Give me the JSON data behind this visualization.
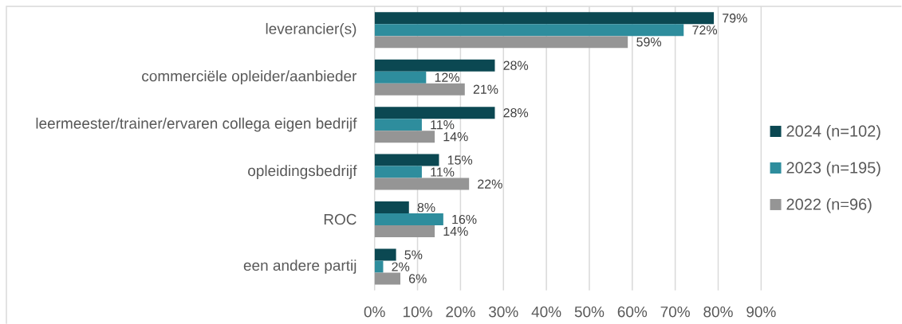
{
  "chart_data": {
    "type": "bar",
    "orientation": "horizontal",
    "categories": [
      "leverancier(s)",
      "commerciële opleider/aanbieder",
      "leermeester/trainer/ervaren collega eigen bedrijf",
      "opleidingsbedrijf",
      "ROC",
      "een andere partij"
    ],
    "series": [
      {
        "name": "2024 (n=102)",
        "color": "#0b4852",
        "values": [
          79,
          28,
          28,
          15,
          8,
          5
        ],
        "value_labels": [
          "79%",
          "28%",
          "28%",
          "15%",
          "8%",
          "5%"
        ]
      },
      {
        "name": "2023 (n=195)",
        "color": "#2e8d9d",
        "values": [
          72,
          12,
          11,
          11,
          16,
          2
        ],
        "value_labels": [
          "72%",
          "12%",
          "11%",
          "11%",
          "16%",
          "2%"
        ]
      },
      {
        "name": "2022 (n=96)",
        "color": "#959595",
        "values": [
          59,
          21,
          14,
          22,
          14,
          6
        ],
        "value_labels": [
          "59%",
          "21%",
          "14%",
          "22%",
          "14%",
          "6%"
        ]
      }
    ],
    "xlim": [
      0,
      90
    ],
    "xticks": [
      {
        "value": 0,
        "label": "0%"
      },
      {
        "value": 10,
        "label": "10%"
      },
      {
        "value": 20,
        "label": "20%"
      },
      {
        "value": 30,
        "label": "30%"
      },
      {
        "value": 40,
        "label": "40%"
      },
      {
        "value": 50,
        "label": "50%"
      },
      {
        "value": 60,
        "label": "60%"
      },
      {
        "value": 70,
        "label": "70%"
      },
      {
        "value": 80,
        "label": "80%"
      },
      {
        "value": 90,
        "label": "90%"
      }
    ],
    "grid": "x",
    "legend": "right"
  }
}
